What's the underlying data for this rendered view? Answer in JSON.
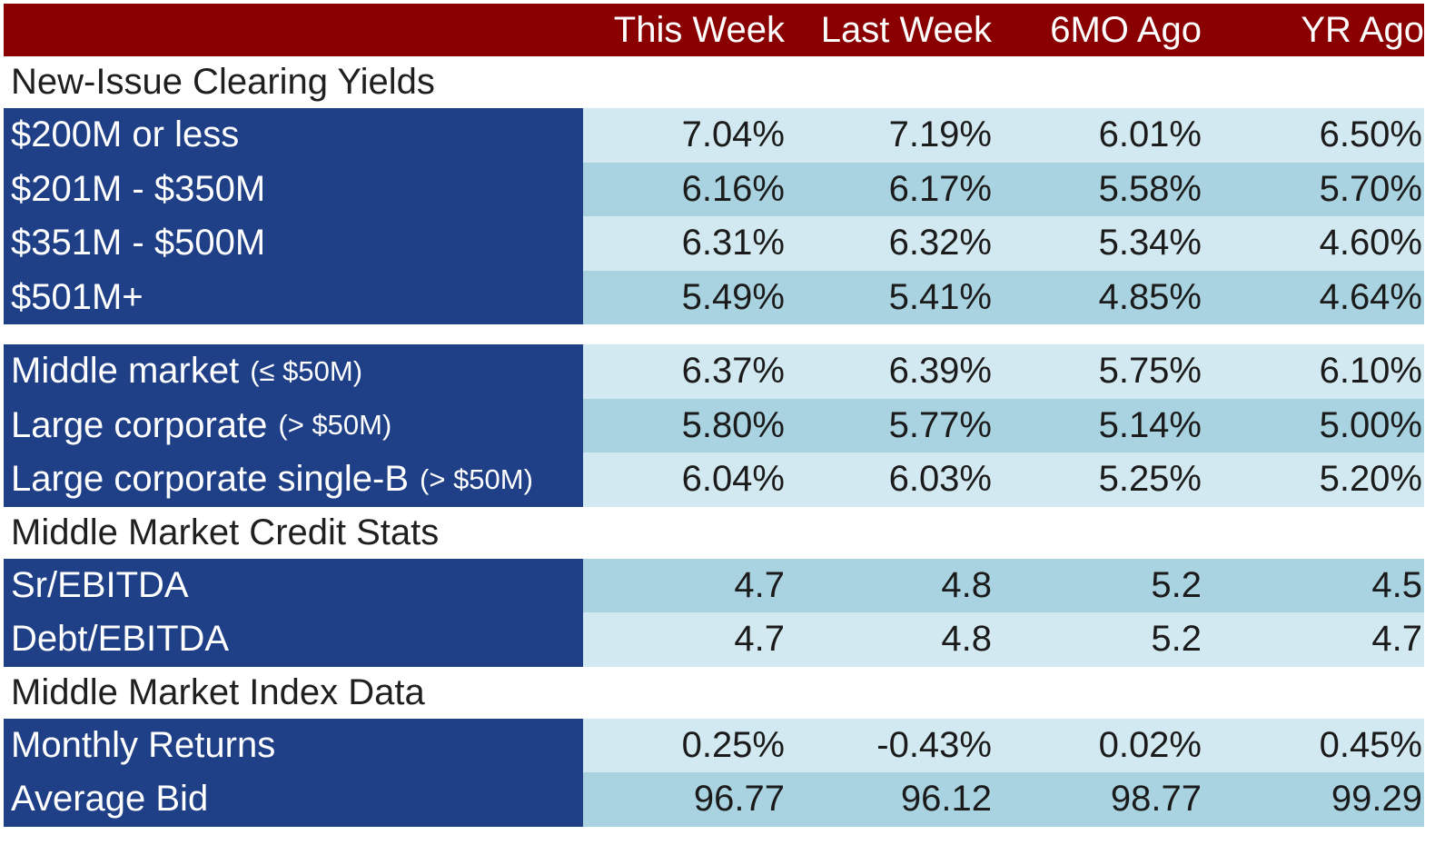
{
  "columns": [
    "This Week",
    "Last Week",
    "6MO Ago",
    "YR Ago"
  ],
  "sections": {
    "new_issue": {
      "title": "New-Issue Clearing Yields",
      "rows": [
        {
          "label": "$200M or less",
          "values": [
            "7.04%",
            "7.19%",
            "6.01%",
            "6.50%"
          ]
        },
        {
          "label": "$201M - $350M",
          "values": [
            "6.16%",
            "6.17%",
            "5.58%",
            "5.70%"
          ]
        },
        {
          "label": "$351M - $500M",
          "values": [
            "6.31%",
            "6.32%",
            "5.34%",
            "4.60%"
          ]
        },
        {
          "label": "$501M+",
          "values": [
            "5.49%",
            "5.41%",
            "4.85%",
            "4.64%"
          ]
        }
      ]
    },
    "segments": {
      "rows": [
        {
          "label": "Middle market",
          "qualifier": "(≤ $50M)",
          "values": [
            "6.37%",
            "6.39%",
            "5.75%",
            "6.10%"
          ]
        },
        {
          "label": "Large corporate",
          "qualifier": "(> $50M)",
          "values": [
            "5.80%",
            "5.77%",
            "5.14%",
            "5.00%"
          ]
        },
        {
          "label": "Large corporate single-B",
          "qualifier": "(> $50M)",
          "values": [
            "6.04%",
            "6.03%",
            "5.25%",
            "5.20%"
          ]
        }
      ]
    },
    "credit_stats": {
      "title": "Middle Market Credit Stats",
      "rows": [
        {
          "label": "Sr/EBITDA",
          "values": [
            "4.7",
            "4.8",
            "5.2",
            "4.5"
          ]
        },
        {
          "label": "Debt/EBITDA",
          "values": [
            "4.7",
            "4.8",
            "5.2",
            "4.7"
          ]
        }
      ]
    },
    "index_data": {
      "title": "Middle Market Index Data",
      "rows": [
        {
          "label": "Monthly Returns",
          "values": [
            "0.25%",
            "-0.43%",
            "0.02%",
            "0.45%"
          ]
        },
        {
          "label": "Average Bid",
          "values": [
            "96.77",
            "96.12",
            "98.77",
            "99.29"
          ]
        }
      ]
    }
  },
  "colors": {
    "header_bg": "#8a0000",
    "label_bg": "#1f3f87",
    "value_light": "#d3e9f1",
    "value_dark": "#a9d3e0"
  }
}
